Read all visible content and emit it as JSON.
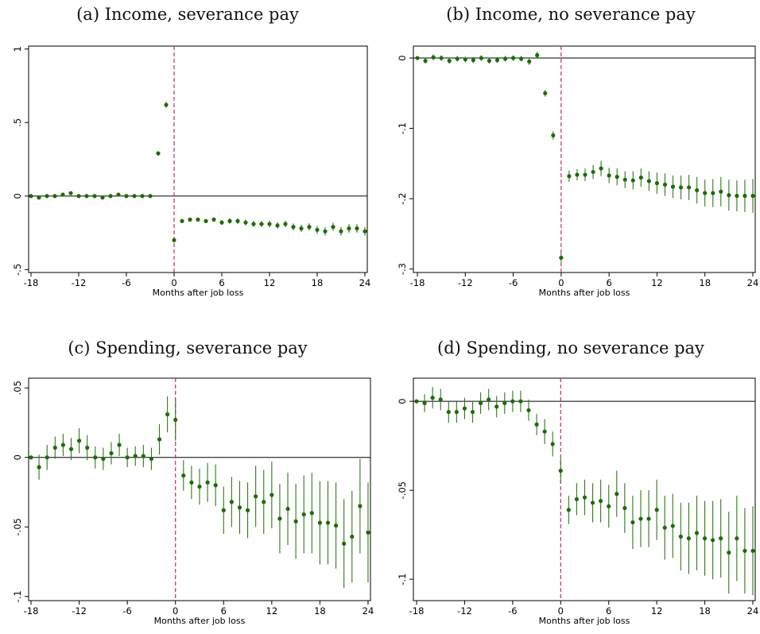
{
  "marker_color": "#1f6b0a",
  "ci_color": "#2e7a1a",
  "event_line_color": "#c0305a",
  "chart_data": [
    {
      "id": "a",
      "type": "scatter",
      "title": "(a) Income, severance pay",
      "xlabel": "Months after job loss",
      "xticks": [
        -18,
        -12,
        -6,
        0,
        6,
        12,
        18,
        24
      ],
      "yticks": [
        1,
        0.5,
        0,
        -0.5
      ],
      "ytick_labels": [
        "1",
        ".5",
        "0",
        "-.5"
      ],
      "xlim": [
        -18.3,
        24.3
      ],
      "ylim": [
        -0.52,
        1.02
      ],
      "x": [
        -18,
        -17,
        -16,
        -15,
        -14,
        -13,
        -12,
        -11,
        -10,
        -9,
        -8,
        -7,
        -6,
        -5,
        -4,
        -3,
        -2,
        -1,
        0,
        1,
        2,
        3,
        4,
        5,
        6,
        7,
        8,
        9,
        10,
        11,
        12,
        13,
        14,
        15,
        16,
        17,
        18,
        19,
        20,
        21,
        22,
        23,
        24
      ],
      "y": [
        0,
        -0.01,
        0,
        0,
        0.01,
        0.02,
        0,
        0,
        0,
        -0.01,
        0,
        0.01,
        0,
        0,
        0,
        0,
        0.29,
        0.62,
        -0.3,
        -0.17,
        -0.16,
        -0.16,
        -0.17,
        -0.16,
        -0.18,
        -0.17,
        -0.17,
        -0.18,
        -0.19,
        -0.19,
        -0.19,
        -0.2,
        -0.19,
        -0.21,
        -0.22,
        -0.21,
        -0.23,
        -0.24,
        -0.21,
        -0.24,
        -0.22,
        -0.22,
        -0.24
      ],
      "ci_half": [
        0.005,
        0.01,
        0.01,
        0.01,
        0.01,
        0.01,
        0.01,
        0.01,
        0.01,
        0.01,
        0.01,
        0.01,
        0.01,
        0.01,
        0.01,
        0.01,
        0.015,
        0.02,
        0.015,
        0.012,
        0.012,
        0.012,
        0.013,
        0.015,
        0.016,
        0.018,
        0.018,
        0.02,
        0.02,
        0.02,
        0.022,
        0.022,
        0.022,
        0.024,
        0.025,
        0.025,
        0.026,
        0.028,
        0.028,
        0.03,
        0.03,
        0.03,
        0.03
      ]
    },
    {
      "id": "b",
      "type": "scatter",
      "title": "(b) Income, no severance pay",
      "xlabel": "Months after job loss",
      "xticks": [
        -18,
        -12,
        -6,
        0,
        6,
        12,
        18,
        24
      ],
      "yticks": [
        0,
        -0.1,
        -0.2,
        -0.3
      ],
      "ytick_labels": [
        "0",
        "-.1",
        "-.2",
        "-.3"
      ],
      "xlim": [
        -18.5,
        24.3
      ],
      "ylim": [
        -0.305,
        0.017
      ],
      "x": [
        -18,
        -17,
        -16,
        -15,
        -14,
        -13,
        -12,
        -11,
        -10,
        -9,
        -8,
        -7,
        -6,
        -5,
        -4,
        -3,
        -2,
        -1,
        0,
        1,
        2,
        3,
        4,
        5,
        6,
        7,
        8,
        9,
        10,
        11,
        12,
        13,
        14,
        15,
        16,
        17,
        18,
        19,
        20,
        21,
        22,
        23,
        24
      ],
      "y": [
        0,
        -0.004,
        0.001,
        0,
        -0.004,
        -0.001,
        -0.002,
        -0.003,
        0,
        -0.004,
        -0.003,
        -0.001,
        0,
        -0.001,
        -0.005,
        0.004,
        -0.05,
        -0.11,
        -0.284,
        -0.168,
        -0.166,
        -0.166,
        -0.162,
        -0.157,
        -0.167,
        -0.169,
        -0.173,
        -0.174,
        -0.17,
        -0.175,
        -0.178,
        -0.18,
        -0.183,
        -0.184,
        -0.184,
        -0.188,
        -0.192,
        -0.192,
        -0.19,
        -0.195,
        -0.196,
        -0.196,
        -0.196
      ],
      "ci_half": [
        0.002,
        0.004,
        0.004,
        0.004,
        0.004,
        0.004,
        0.004,
        0.004,
        0.004,
        0.004,
        0.004,
        0.004,
        0.004,
        0.004,
        0.005,
        0.005,
        0.005,
        0.006,
        0.006,
        0.008,
        0.008,
        0.009,
        0.01,
        0.011,
        0.011,
        0.012,
        0.012,
        0.013,
        0.013,
        0.014,
        0.015,
        0.016,
        0.016,
        0.017,
        0.018,
        0.019,
        0.019,
        0.02,
        0.021,
        0.022,
        0.022,
        0.023,
        0.024
      ]
    },
    {
      "id": "c",
      "type": "scatter",
      "title": "(c) Spending, severance pay",
      "xlabel": "Months after job loss",
      "xticks": [
        -18,
        -12,
        -6,
        0,
        6,
        12,
        18,
        24
      ],
      "yticks": [
        0.05,
        0,
        -0.05,
        -0.1
      ],
      "ytick_labels": [
        ".05",
        "0",
        "-.05",
        "-.1"
      ],
      "xlim": [
        -18.3,
        24.3
      ],
      "ylim": [
        -0.103,
        0.057
      ],
      "x": [
        -18,
        -17,
        -16,
        -15,
        -14,
        -13,
        -12,
        -11,
        -10,
        -9,
        -8,
        -7,
        -6,
        -5,
        -4,
        -3,
        -2,
        -1,
        0,
        1,
        2,
        3,
        4,
        5,
        6,
        7,
        8,
        9,
        10,
        11,
        12,
        13,
        14,
        15,
        16,
        17,
        18,
        19,
        20,
        21,
        22,
        23,
        24
      ],
      "y": [
        0,
        -0.007,
        0,
        0.007,
        0.009,
        0.006,
        0.012,
        0.007,
        0,
        -0.001,
        0.003,
        0.009,
        0,
        0.001,
        0.001,
        -0.001,
        0.013,
        0.031,
        0.027,
        -0.013,
        -0.018,
        -0.021,
        -0.018,
        -0.02,
        -0.038,
        -0.032,
        -0.036,
        -0.038,
        -0.028,
        -0.032,
        -0.027,
        -0.044,
        -0.037,
        -0.046,
        -0.041,
        -0.04,
        -0.047,
        -0.047,
        -0.049,
        -0.062,
        -0.057,
        -0.035,
        -0.054
      ],
      "ci_half": [
        0.001,
        0.009,
        0.009,
        0.008,
        0.008,
        0.008,
        0.009,
        0.009,
        0.008,
        0.008,
        0.008,
        0.008,
        0.007,
        0.007,
        0.008,
        0.008,
        0.011,
        0.013,
        0.015,
        0.011,
        0.012,
        0.013,
        0.014,
        0.015,
        0.017,
        0.018,
        0.019,
        0.02,
        0.022,
        0.023,
        0.024,
        0.025,
        0.026,
        0.027,
        0.028,
        0.029,
        0.03,
        0.03,
        0.031,
        0.032,
        0.033,
        0.034,
        0.036
      ]
    },
    {
      "id": "d",
      "type": "scatter",
      "title": "(d) Spending, no severance pay",
      "xlabel": "Months after job loss",
      "xticks": [
        -18,
        -12,
        -6,
        0,
        6,
        12,
        18,
        24
      ],
      "yticks": [
        0,
        -0.05,
        -0.1
      ],
      "ytick_labels": [
        "0",
        "-.05",
        "-.1"
      ],
      "xlim": [
        -18.4,
        24.3
      ],
      "ylim": [
        -0.112,
        0.013
      ],
      "x": [
        -18,
        -17,
        -16,
        -15,
        -14,
        -13,
        -12,
        -11,
        -10,
        -9,
        -8,
        -7,
        -6,
        -5,
        -4,
        -3,
        -2,
        -1,
        0,
        1,
        2,
        3,
        4,
        5,
        6,
        7,
        8,
        9,
        10,
        11,
        12,
        13,
        14,
        15,
        16,
        17,
        18,
        19,
        20,
        21,
        22,
        23,
        24
      ],
      "y": [
        0,
        -0.001,
        0.002,
        0.001,
        -0.006,
        -0.006,
        -0.004,
        -0.006,
        -0.001,
        0.001,
        -0.003,
        -0.001,
        0,
        0,
        -0.005,
        -0.013,
        -0.017,
        -0.024,
        -0.039,
        -0.061,
        -0.055,
        -0.054,
        -0.057,
        -0.056,
        -0.059,
        -0.052,
        -0.06,
        -0.068,
        -0.066,
        -0.066,
        -0.061,
        -0.071,
        -0.07,
        -0.076,
        -0.077,
        -0.074,
        -0.077,
        -0.078,
        -0.077,
        -0.085,
        -0.077,
        -0.084,
        -0.084
      ],
      "ci_half": [
        0.0005,
        0.005,
        0.006,
        0.006,
        0.006,
        0.006,
        0.006,
        0.006,
        0.006,
        0.006,
        0.006,
        0.006,
        0.006,
        0.006,
        0.006,
        0.006,
        0.007,
        0.007,
        0.007,
        0.008,
        0.009,
        0.01,
        0.011,
        0.012,
        0.012,
        0.013,
        0.014,
        0.015,
        0.016,
        0.016,
        0.017,
        0.018,
        0.018,
        0.019,
        0.02,
        0.021,
        0.021,
        0.022,
        0.022,
        0.023,
        0.024,
        0.024,
        0.025
      ]
    }
  ]
}
